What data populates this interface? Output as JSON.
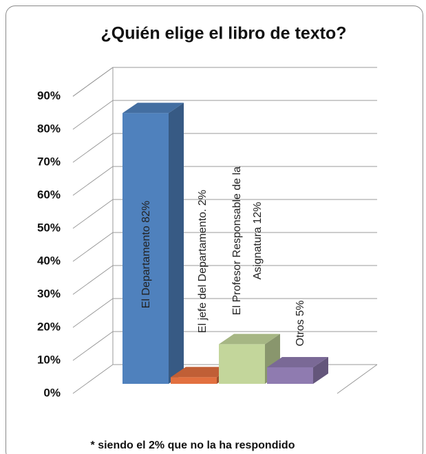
{
  "chart_data": {
    "type": "bar3d",
    "title": "¿Quién elige el libro de texto?",
    "values": [
      82,
      2,
      12,
      5
    ],
    "value_labels": [
      "El Departamento 82%",
      "El jefe del Departamento. 2%",
      "El Profesor Responsable de la Asignatura 12%",
      "Otros 5%"
    ],
    "colors": [
      "#4f81bd",
      "#e2703f",
      "#c3d69b",
      "#8f7bb0"
    ],
    "ylim": [
      0,
      90
    ],
    "yticks": [
      {
        "value": 0,
        "label": "0%"
      },
      {
        "value": 10,
        "label": "10%"
      },
      {
        "value": 20,
        "label": "20%"
      },
      {
        "value": 30,
        "label": "30%"
      },
      {
        "value": 40,
        "label": "40%"
      },
      {
        "value": 50,
        "label": "50%"
      },
      {
        "value": 60,
        "label": "60%"
      },
      {
        "value": 70,
        "label": "70%"
      },
      {
        "value": 80,
        "label": "80%"
      },
      {
        "value": 90,
        "label": "90%"
      }
    ],
    "grid": true,
    "annotation": "* siendo el 2% que no la ha respondido"
  }
}
